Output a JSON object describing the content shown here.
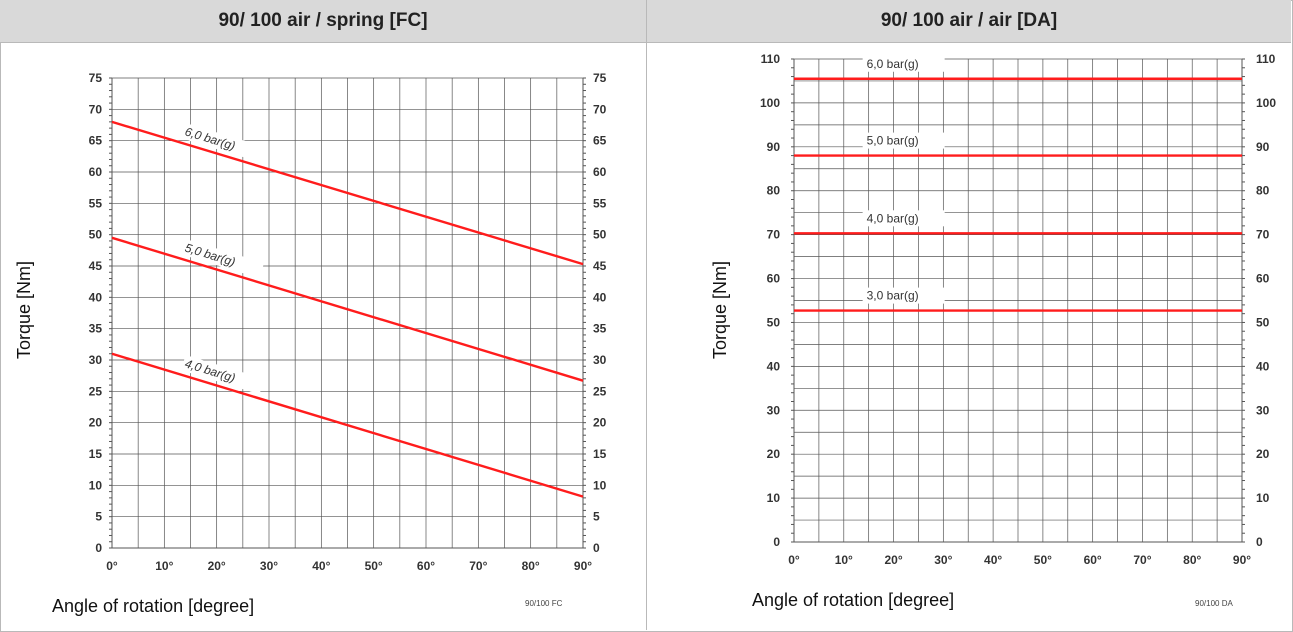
{
  "headers": {
    "left": "90/ 100 air / spring [FC]",
    "right": "90/ 100 air / air [DA]"
  },
  "colors": {
    "line": "#ff1c1c",
    "header_bg": "#d9d9d9",
    "grid": "#555555"
  },
  "chart_data": [
    {
      "type": "line",
      "xlabel": "Angle of rotation   [degree]",
      "ylabel": "Torque   [Nm]",
      "source": "90/100 FC",
      "xlim": [
        0,
        90
      ],
      "ylim": [
        0,
        75
      ],
      "x_ticks": [
        "0°",
        "10°",
        "20°",
        "30°",
        "40°",
        "50°",
        "60°",
        "70°",
        "80°",
        "90°"
      ],
      "y_ticks": [
        "0",
        "5",
        "10",
        "15",
        "20",
        "25",
        "30",
        "35",
        "40",
        "45",
        "50",
        "55",
        "60",
        "65",
        "70",
        "75"
      ],
      "grid": true,
      "series": [
        {
          "name": "6,0 bar(g)",
          "x": [
            0,
            90
          ],
          "y": [
            68,
            45.3
          ]
        },
        {
          "name": "5,0 bar(g)",
          "x": [
            0,
            90
          ],
          "y": [
            49.5,
            26.7
          ]
        },
        {
          "name": "4,0 bar(g)",
          "x": [
            0,
            90
          ],
          "y": [
            31,
            8.2
          ]
        }
      ]
    },
    {
      "type": "line",
      "xlabel": "Angle of rotation   [degree]",
      "ylabel": "Torque   [Nm]",
      "source": "90/100 DA",
      "xlim": [
        0,
        90
      ],
      "ylim": [
        0,
        110
      ],
      "x_ticks": [
        "0°",
        "10°",
        "20°",
        "30°",
        "40°",
        "50°",
        "60°",
        "70°",
        "80°",
        "90°"
      ],
      "y_ticks": [
        "0",
        "10",
        "20",
        "30",
        "40",
        "50",
        "60",
        "70",
        "80",
        "90",
        "100",
        "110"
      ],
      "grid": true,
      "series": [
        {
          "name": "6,0 bar(g)",
          "x": [
            0,
            90
          ],
          "y": [
            105.5,
            105.5
          ]
        },
        {
          "name": "5,0 bar(g)",
          "x": [
            0,
            90
          ],
          "y": [
            88,
            88
          ]
        },
        {
          "name": "4,0 bar(g)",
          "x": [
            0,
            90
          ],
          "y": [
            70.3,
            70.3
          ]
        },
        {
          "name": "3,0 bar(g)",
          "x": [
            0,
            90
          ],
          "y": [
            52.7,
            52.7
          ]
        }
      ]
    }
  ]
}
